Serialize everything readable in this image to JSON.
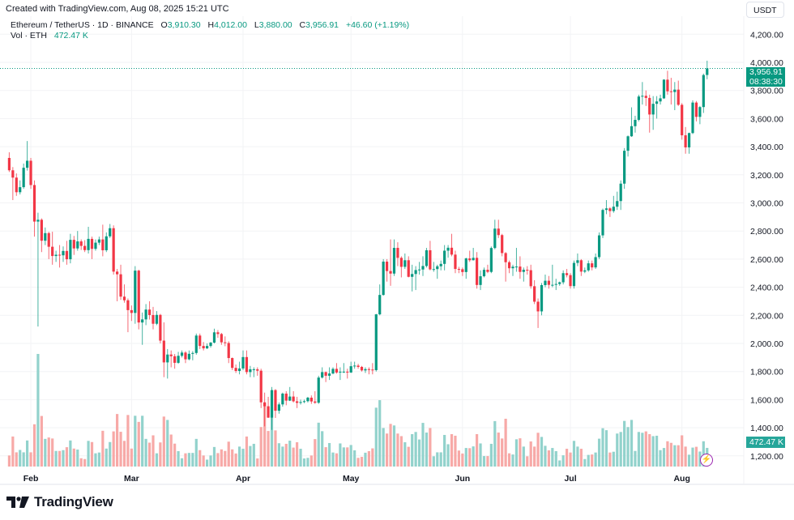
{
  "watermark": "Created with TradingView.com, Aug 08, 2025 15:21 UTC",
  "legend": {
    "symbol": "Ethereum / TetherUS · 1D · BINANCE",
    "open_label": "O",
    "open": "3,910.30",
    "high_label": "H",
    "high": "4,012.00",
    "low_label": "L",
    "low": "3,880.00",
    "close_label": "C",
    "close": "3,956.91",
    "change": "+46.60 (+1.19%)",
    "volume_label": "Vol · ETH",
    "volume": "472.47 K"
  },
  "currency_button": "USDT",
  "last_price_tag": {
    "price": "3,956.91",
    "countdown": "08:38:30"
  },
  "volume_tag": "472.47 K",
  "logo": "TradingView",
  "icons": {
    "alert": "lightning-icon",
    "logo": "tradingview-logo"
  },
  "chart_data": {
    "type": "candlestick",
    "interval": "1D",
    "ylim": [
      1200,
      4200
    ],
    "y_ticks": [
      "1,200.00",
      "1,400.00",
      "1,600.00",
      "1,800.00",
      "2,000.00",
      "2,200.00",
      "2,400.00",
      "2,600.00",
      "2,800.00",
      "3,000.00",
      "3,200.00",
      "3,400.00",
      "3,600.00",
      "3,800.00",
      "4,000.00",
      "4,200.00"
    ],
    "x_ticks": [
      "Feb",
      "Mar",
      "Apr",
      "May",
      "Jun",
      "Jul",
      "Aug"
    ],
    "grid": true,
    "volume_unit": "K ETH",
    "colors": {
      "up": "#089981",
      "down": "#f23645",
      "volume_up": "#92d2cc",
      "volume_down": "#f7a9a7"
    },
    "candle_fields": [
      "open",
      "high",
      "low",
      "close",
      "volume"
    ],
    "candles": [
      [
        3320,
        3360,
        3220,
        3232,
        280
      ],
      [
        3232,
        3255,
        3020,
        3180,
        760
      ],
      [
        3180,
        3210,
        3050,
        3076,
        360
      ],
      [
        3076,
        3160,
        3060,
        3112,
        420
      ],
      [
        3112,
        3280,
        3100,
        3250,
        360
      ],
      [
        3250,
        3440,
        3230,
        3300,
        660
      ],
      [
        3300,
        3320,
        3100,
        3127,
        360
      ],
      [
        3127,
        3160,
        2760,
        2867,
        1070
      ],
      [
        2867,
        2930,
        2120,
        2880,
        2850
      ],
      [
        2880,
        2890,
        2650,
        2731,
        1280
      ],
      [
        2731,
        2825,
        2700,
        2785,
        700
      ],
      [
        2785,
        2795,
        2600,
        2688,
        735
      ],
      [
        2688,
        2795,
        2560,
        2622,
        710
      ],
      [
        2622,
        2660,
        2580,
        2631,
        395
      ],
      [
        2631,
        2700,
        2540,
        2627,
        395
      ],
      [
        2627,
        2690,
        2580,
        2658,
        415
      ],
      [
        2658,
        2730,
        2560,
        2599,
        490
      ],
      [
        2599,
        2780,
        2570,
        2737,
        660
      ],
      [
        2737,
        2765,
        2630,
        2676,
        455
      ],
      [
        2676,
        2800,
        2660,
        2726,
        430
      ],
      [
        2726,
        2740,
        2665,
        2694,
        210
      ],
      [
        2694,
        2735,
        2650,
        2664,
        190
      ],
      [
        2664,
        2830,
        2640,
        2744,
        650
      ],
      [
        2744,
        2760,
        2600,
        2673,
        620
      ],
      [
        2673,
        2740,
        2660,
        2717,
        335
      ],
      [
        2717,
        2760,
        2700,
        2740,
        355
      ],
      [
        2740,
        2845,
        2620,
        2663,
        905
      ],
      [
        2663,
        2790,
        2650,
        2762,
        455
      ],
      [
        2762,
        2850,
        2750,
        2820,
        620
      ],
      [
        2820,
        2840,
        2490,
        2511,
        890
      ],
      [
        2511,
        2530,
        2300,
        2492,
        1330
      ],
      [
        2492,
        2560,
        2310,
        2333,
        880
      ],
      [
        2333,
        2420,
        2290,
        2307,
        650
      ],
      [
        2307,
        2320,
        2080,
        2237,
        1305
      ],
      [
        2237,
        2270,
        2160,
        2217,
        455
      ],
      [
        2217,
        2550,
        2140,
        2518,
        1285
      ],
      [
        2518,
        2525,
        2100,
        2149,
        1130
      ],
      [
        2149,
        2220,
        1990,
        2171,
        1285
      ],
      [
        2171,
        2280,
        2130,
        2241,
        700
      ],
      [
        2241,
        2300,
        2170,
        2202,
        605
      ],
      [
        2202,
        2260,
        2100,
        2140,
        790
      ],
      [
        2140,
        2230,
        2130,
        2203,
        335
      ],
      [
        2203,
        2210,
        2000,
        2020,
        610
      ],
      [
        2020,
        2150,
        1760,
        1865,
        1265
      ],
      [
        1865,
        1960,
        1750,
        1921,
        1180
      ],
      [
        1921,
        1950,
        1830,
        1909,
        810
      ],
      [
        1909,
        1925,
        1820,
        1862,
        580
      ],
      [
        1862,
        1940,
        1855,
        1912,
        390
      ],
      [
        1912,
        1950,
        1900,
        1935,
        210
      ],
      [
        1935,
        1945,
        1860,
        1887,
        335
      ],
      [
        1887,
        1950,
        1880,
        1926,
        345
      ],
      [
        1926,
        1945,
        1880,
        1932,
        345
      ],
      [
        1932,
        2070,
        1920,
        2056,
        700
      ],
      [
        2056,
        2070,
        1960,
        1982,
        415
      ],
      [
        1982,
        2010,
        1950,
        1965,
        280
      ],
      [
        1965,
        2000,
        1960,
        1982,
        175
      ],
      [
        1982,
        2010,
        1970,
        2006,
        280
      ],
      [
        2006,
        2105,
        2000,
        2079,
        495
      ],
      [
        2079,
        2095,
        2040,
        2067,
        340
      ],
      [
        2067,
        2075,
        1990,
        2008,
        435
      ],
      [
        2008,
        2050,
        1980,
        2003,
        395
      ],
      [
        2003,
        2015,
        1860,
        1896,
        630
      ],
      [
        1896,
        1900,
        1810,
        1826,
        435
      ],
      [
        1826,
        1850,
        1790,
        1804,
        330
      ],
      [
        1804,
        1870,
        1780,
        1822,
        505
      ],
      [
        1822,
        1950,
        1810,
        1903,
        450
      ],
      [
        1903,
        1950,
        1780,
        1796,
        760
      ],
      [
        1796,
        1840,
        1760,
        1816,
        520
      ],
      [
        1816,
        1830,
        1760,
        1816,
        575
      ],
      [
        1816,
        1830,
        1770,
        1806,
        205
      ],
      [
        1806,
        1820,
        1540,
        1581,
        1000
      ],
      [
        1581,
        1650,
        1410,
        1553,
        1600
      ],
      [
        1553,
        1620,
        1470,
        1472,
        900
      ],
      [
        1472,
        1690,
        1385,
        1668,
        1500
      ],
      [
        1668,
        1675,
        1470,
        1521,
        915
      ],
      [
        1521,
        1580,
        1500,
        1566,
        590
      ],
      [
        1566,
        1650,
        1550,
        1643,
        505
      ],
      [
        1643,
        1660,
        1560,
        1593,
        575
      ],
      [
        1593,
        1690,
        1590,
        1622,
        655
      ],
      [
        1622,
        1660,
        1580,
        1588,
        480
      ],
      [
        1588,
        1620,
        1540,
        1577,
        615
      ],
      [
        1577,
        1600,
        1565,
        1583,
        450
      ],
      [
        1583,
        1600,
        1575,
        1589,
        205
      ],
      [
        1589,
        1620,
        1580,
        1614,
        220
      ],
      [
        1614,
        1630,
        1570,
        1587,
        280
      ],
      [
        1587,
        1660,
        1570,
        1578,
        695
      ],
      [
        1578,
        1770,
        1570,
        1757,
        1110
      ],
      [
        1757,
        1830,
        1750,
        1796,
        895
      ],
      [
        1796,
        1800,
        1725,
        1770,
        490
      ],
      [
        1770,
        1830,
        1740,
        1786,
        595
      ],
      [
        1786,
        1830,
        1780,
        1819,
        355
      ],
      [
        1819,
        1860,
        1785,
        1793,
        335
      ],
      [
        1793,
        1830,
        1740,
        1799,
        585
      ],
      [
        1799,
        1860,
        1790,
        1799,
        485
      ],
      [
        1799,
        1820,
        1750,
        1793,
        485
      ],
      [
        1793,
        1870,
        1790,
        1838,
        545
      ],
      [
        1838,
        1870,
        1820,
        1842,
        410
      ],
      [
        1842,
        1855,
        1820,
        1833,
        220
      ],
      [
        1833,
        1840,
        1800,
        1808,
        245
      ],
      [
        1808,
        1830,
        1790,
        1817,
        350
      ],
      [
        1817,
        1830,
        1780,
        1814,
        390
      ],
      [
        1814,
        1860,
        1780,
        1810,
        460
      ],
      [
        1810,
        2210,
        1800,
        2207,
        1490
      ],
      [
        2207,
        2420,
        2200,
        2345,
        1680
      ],
      [
        2345,
        2600,
        2340,
        2582,
        975
      ],
      [
        2582,
        2600,
        2440,
        2515,
        835
      ],
      [
        2515,
        2740,
        2410,
        2497,
        1080
      ],
      [
        2497,
        2740,
        2480,
        2680,
        1040
      ],
      [
        2680,
        2720,
        2550,
        2609,
        835
      ],
      [
        2609,
        2620,
        2470,
        2545,
        770
      ],
      [
        2545,
        2640,
        2530,
        2592,
        615
      ],
      [
        2592,
        2620,
        2470,
        2474,
        500
      ],
      [
        2474,
        2560,
        2370,
        2494,
        820
      ],
      [
        2494,
        2550,
        2380,
        2522,
        875
      ],
      [
        2522,
        2580,
        2490,
        2526,
        685
      ],
      [
        2526,
        2620,
        2480,
        2551,
        1105
      ],
      [
        2551,
        2680,
        2540,
        2663,
        860
      ],
      [
        2663,
        2730,
        2520,
        2527,
        975
      ],
      [
        2527,
        2580,
        2510,
        2529,
        260
      ],
      [
        2529,
        2560,
        2460,
        2549,
        360
      ],
      [
        2549,
        2590,
        2520,
        2566,
        360
      ],
      [
        2566,
        2700,
        2520,
        2660,
        800
      ],
      [
        2660,
        2700,
        2610,
        2681,
        565
      ],
      [
        2681,
        2780,
        2620,
        2632,
        820
      ],
      [
        2632,
        2660,
        2500,
        2530,
        780
      ],
      [
        2530,
        2545,
        2500,
        2528,
        405
      ],
      [
        2528,
        2540,
        2480,
        2508,
        330
      ],
      [
        2508,
        2610,
        2460,
        2605,
        470
      ],
      [
        2605,
        2660,
        2580,
        2592,
        465
      ],
      [
        2592,
        2680,
        2590,
        2609,
        510
      ],
      [
        2609,
        2650,
        2390,
        2416,
        820
      ],
      [
        2416,
        2520,
        2380,
        2478,
        585
      ],
      [
        2478,
        2540,
        2470,
        2524,
        265
      ],
      [
        2524,
        2560,
        2500,
        2509,
        265
      ],
      [
        2509,
        2690,
        2500,
        2679,
        575
      ],
      [
        2679,
        2880,
        2670,
        2817,
        1150
      ],
      [
        2817,
        2880,
        2750,
        2771,
        860
      ],
      [
        2771,
        2780,
        2620,
        2643,
        710
      ],
      [
        2643,
        2650,
        2440,
        2578,
        1210
      ],
      [
        2578,
        2590,
        2500,
        2535,
        335
      ],
      [
        2535,
        2560,
        2480,
        2546,
        305
      ],
      [
        2546,
        2680,
        2510,
        2547,
        690
      ],
      [
        2547,
        2620,
        2460,
        2509,
        715
      ],
      [
        2509,
        2540,
        2440,
        2524,
        505
      ],
      [
        2524,
        2550,
        2490,
        2521,
        260
      ],
      [
        2521,
        2560,
        2390,
        2407,
        635
      ],
      [
        2407,
        2450,
        2280,
        2297,
        505
      ],
      [
        2297,
        2320,
        2110,
        2228,
        855
      ],
      [
        2228,
        2430,
        2200,
        2415,
        750
      ],
      [
        2415,
        2490,
        2400,
        2446,
        525
      ],
      [
        2446,
        2480,
        2390,
        2417,
        410
      ],
      [
        2417,
        2560,
        2400,
        2417,
        470
      ],
      [
        2417,
        2460,
        2380,
        2423,
        390
      ],
      [
        2423,
        2440,
        2410,
        2435,
        155
      ],
      [
        2435,
        2520,
        2420,
        2500,
        285
      ],
      [
        2500,
        2530,
        2470,
        2486,
        450
      ],
      [
        2486,
        2500,
        2390,
        2408,
        355
      ],
      [
        2408,
        2590,
        2390,
        2573,
        650
      ],
      [
        2573,
        2640,
        2550,
        2592,
        505
      ],
      [
        2592,
        2600,
        2480,
        2511,
        450
      ],
      [
        2511,
        2540,
        2500,
        2520,
        190
      ],
      [
        2520,
        2590,
        2510,
        2570,
        295
      ],
      [
        2570,
        2590,
        2520,
        2541,
        305
      ],
      [
        2541,
        2640,
        2530,
        2614,
        355
      ],
      [
        2614,
        2790,
        2600,
        2769,
        705
      ],
      [
        2769,
        2960,
        2750,
        2950,
        970
      ],
      [
        2950,
        3020,
        2920,
        2961,
        920
      ],
      [
        2961,
        2970,
        2900,
        2942,
        355
      ],
      [
        2942,
        3050,
        2930,
        2973,
        375
      ],
      [
        2973,
        3080,
        2950,
        3013,
        835
      ],
      [
        3013,
        3160,
        2950,
        3137,
        875
      ],
      [
        3137,
        3390,
        3100,
        3371,
        1155
      ],
      [
        3371,
        3480,
        3330,
        3474,
        1000
      ],
      [
        3474,
        3680,
        3470,
        3546,
        1180
      ],
      [
        3546,
        3620,
        3500,
        3591,
        395
      ],
      [
        3591,
        3770,
        3580,
        3757,
        875
      ],
      [
        3757,
        3860,
        3700,
        3762,
        855
      ],
      [
        3762,
        3800,
        3690,
        3747,
        890
      ],
      [
        3747,
        3770,
        3500,
        3629,
        820
      ],
      [
        3629,
        3760,
        3520,
        3705,
        770
      ],
      [
        3705,
        3760,
        3600,
        3722,
        780
      ],
      [
        3722,
        3770,
        3700,
        3744,
        415
      ],
      [
        3744,
        3880,
        3740,
        3877,
        470
      ],
      [
        3877,
        3940,
        3770,
        3794,
        640
      ],
      [
        3794,
        3890,
        3700,
        3789,
        600
      ],
      [
        3789,
        3860,
        3660,
        3806,
        540
      ],
      [
        3806,
        3870,
        3690,
        3698,
        540
      ],
      [
        3698,
        3710,
        3450,
        3481,
        790
      ],
      [
        3481,
        3540,
        3350,
        3395,
        505
      ],
      [
        3395,
        3500,
        3350,
        3497,
        300
      ],
      [
        3497,
        3730,
        3490,
        3714,
        480
      ],
      [
        3714,
        3725,
        3580,
        3612,
        500
      ],
      [
        3612,
        3690,
        3560,
        3682,
        380
      ],
      [
        3682,
        3920,
        3640,
        3910,
        640
      ],
      [
        3910.3,
        4012.0,
        3880.0,
        3956.91,
        472.47
      ]
    ]
  }
}
